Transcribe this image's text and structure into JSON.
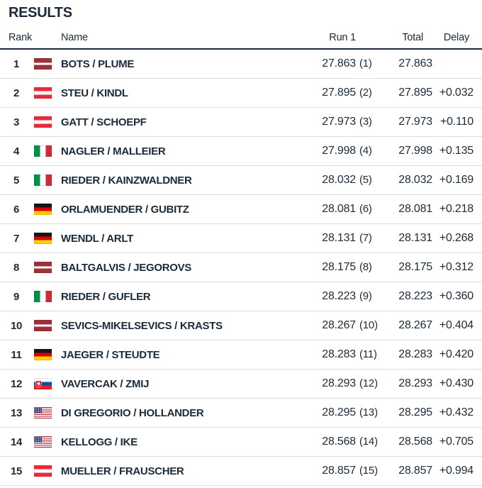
{
  "title": "RESULTS",
  "colors": {
    "text": "#1b2a38",
    "rule": "#1b2a38",
    "separator": "#dcdcdc",
    "bg": "#ffffff"
  },
  "table": {
    "headers": {
      "rank": "Rank",
      "name": "Name",
      "run1": "Run 1",
      "total": "Total",
      "delay": "Delay"
    },
    "rows": [
      {
        "rank": "1",
        "country": "LAT",
        "name": "BOTS / PLUME",
        "run1": "27.863",
        "run1_rank": "(1)",
        "total": "27.863",
        "delay": ""
      },
      {
        "rank": "2",
        "country": "AUT",
        "name": "STEU / KINDL",
        "run1": "27.895",
        "run1_rank": "(2)",
        "total": "27.895",
        "delay": "+0.032"
      },
      {
        "rank": "3",
        "country": "AUT",
        "name": "GATT / SCHOEPF",
        "run1": "27.973",
        "run1_rank": "(3)",
        "total": "27.973",
        "delay": "+0.110"
      },
      {
        "rank": "4",
        "country": "ITA",
        "name": "NAGLER / MALLEIER",
        "run1": "27.998",
        "run1_rank": "(4)",
        "total": "27.998",
        "delay": "+0.135"
      },
      {
        "rank": "5",
        "country": "ITA",
        "name": "RIEDER / KAINZWALDNER",
        "run1": "28.032",
        "run1_rank": "(5)",
        "total": "28.032",
        "delay": "+0.169"
      },
      {
        "rank": "6",
        "country": "GER",
        "name": "ORLAMUENDER / GUBITZ",
        "run1": "28.081",
        "run1_rank": "(6)",
        "total": "28.081",
        "delay": "+0.218"
      },
      {
        "rank": "7",
        "country": "GER",
        "name": "WENDL / ARLT",
        "run1": "28.131",
        "run1_rank": "(7)",
        "total": "28.131",
        "delay": "+0.268"
      },
      {
        "rank": "8",
        "country": "LAT",
        "name": "BALTGALVIS / JEGOROVS",
        "run1": "28.175",
        "run1_rank": "(8)",
        "total": "28.175",
        "delay": "+0.312"
      },
      {
        "rank": "9",
        "country": "ITA",
        "name": "RIEDER / GUFLER",
        "run1": "28.223",
        "run1_rank": "(9)",
        "total": "28.223",
        "delay": "+0.360"
      },
      {
        "rank": "10",
        "country": "LAT",
        "name": "SEVICS-MIKELSEVICS / KRASTS",
        "run1": "28.267",
        "run1_rank": "(10)",
        "total": "28.267",
        "delay": "+0.404"
      },
      {
        "rank": "11",
        "country": "GER",
        "name": "JAEGER / STEUDTE",
        "run1": "28.283",
        "run1_rank": "(11)",
        "total": "28.283",
        "delay": "+0.420"
      },
      {
        "rank": "12",
        "country": "SVK",
        "name": "VAVERCAK / ZMIJ",
        "run1": "28.293",
        "run1_rank": "(12)",
        "total": "28.293",
        "delay": "+0.430"
      },
      {
        "rank": "13",
        "country": "USA",
        "name": "DI GREGORIO / HOLLANDER",
        "run1": "28.295",
        "run1_rank": "(13)",
        "total": "28.295",
        "delay": "+0.432"
      },
      {
        "rank": "14",
        "country": "USA",
        "name": "KELLOGG / IKE",
        "run1": "28.568",
        "run1_rank": "(14)",
        "total": "28.568",
        "delay": "+0.705"
      },
      {
        "rank": "15",
        "country": "AUT",
        "name": "MUELLER / FRAUSCHER",
        "run1": "28.857",
        "run1_rank": "(15)",
        "total": "28.857",
        "delay": "+0.994"
      }
    ]
  }
}
